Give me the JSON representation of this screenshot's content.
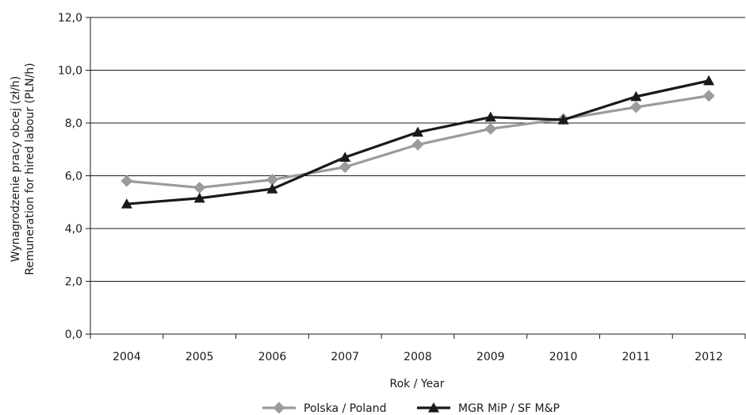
{
  "chart_data": {
    "type": "line",
    "title": "",
    "xlabel": "Rok / Year",
    "ylabel_lines": [
      "Wynagrodzenie pracy obcej (zł/h)",
      "Remuneration for hired labour (PLN/h)"
    ],
    "categories": [
      "2004",
      "2005",
      "2006",
      "2007",
      "2008",
      "2009",
      "2010",
      "2011",
      "2012"
    ],
    "ylim": [
      0,
      12
    ],
    "yticks": [
      0,
      2,
      4,
      6,
      8,
      10,
      12
    ],
    "ytick_labels": [
      "0,0",
      "2,0",
      "4,0",
      "6,0",
      "8,0",
      "10,0",
      "12,0"
    ],
    "grid": "horizontal",
    "legend_position": "bottom-center",
    "series": [
      {
        "name": "Polska / Poland",
        "color": "#9b9b9b",
        "marker": "diamond",
        "values": [
          5.8,
          5.55,
          5.85,
          6.33,
          7.18,
          7.78,
          8.15,
          8.6,
          9.03
        ]
      },
      {
        "name": "MGR MiP / SF M&P",
        "color": "#1a1a1a",
        "marker": "triangle",
        "values": [
          4.93,
          5.15,
          5.5,
          6.7,
          7.65,
          8.22,
          8.12,
          9.0,
          9.6
        ]
      }
    ]
  }
}
